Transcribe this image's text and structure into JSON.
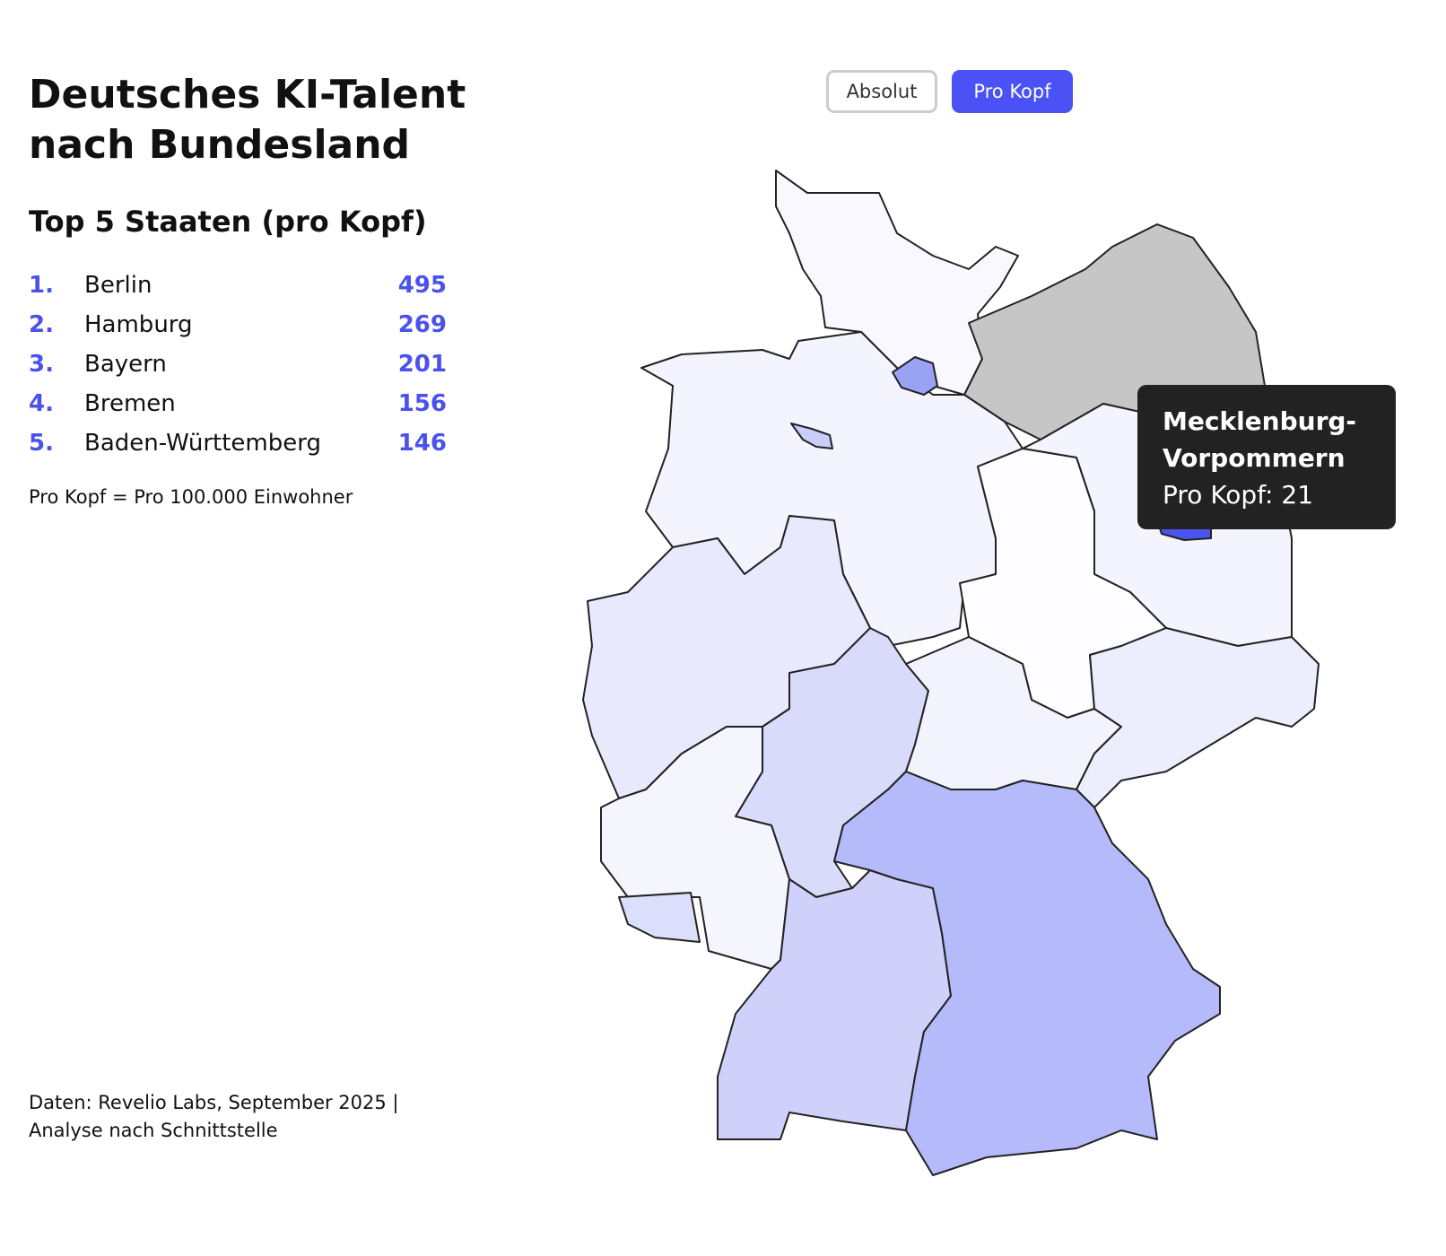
{
  "header": {
    "title": "Deutsches KI-Talent nach Bundesland"
  },
  "buttons": [
    "Absolut",
    "Pro Kopf"
  ],
  "ranking": {
    "heading": "Top 5 Staaten (pro Kopf)",
    "items": [
      {
        "rank": "1.",
        "name": "Berlin",
        "value": 495
      },
      {
        "rank": "2.",
        "name": "Hamburg",
        "value": 269
      },
      {
        "rank": "3.",
        "name": "Bayern",
        "value": 201
      },
      {
        "rank": "4.",
        "name": "Bremen",
        "value": 156
      },
      {
        "rank": "5.",
        "name": "Baden-Württemberg",
        "value": 146
      }
    ]
  },
  "note": "Pro Kopf = Pro 100.000 Einwohner",
  "source": "Daten: Revelio Labs, September 2025 | Analyse nach Schnittstelle",
  "tooltip": {
    "title": "Mecklenburg-Vorpommern",
    "label": "Pro Kopf: 21"
  }
}
